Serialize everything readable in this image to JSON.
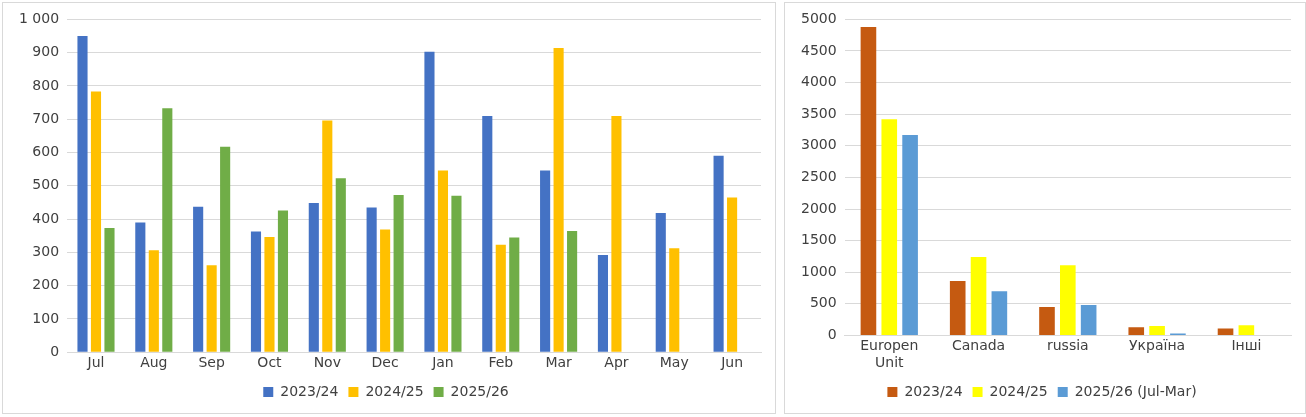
{
  "chart_data": [
    {
      "type": "bar",
      "categories": [
        "Jul",
        "Aug",
        "Sep",
        "Oct",
        "Nov",
        "Dec",
        "Jan",
        "Feb",
        "Mar",
        "Apr",
        "May",
        "Jun"
      ],
      "series": [
        {
          "name": "2023/24",
          "color": "#4472c4",
          "values": [
            950,
            390,
            437,
            363,
            448,
            435,
            903,
            710,
            546,
            292,
            418,
            590
          ]
        },
        {
          "name": "2024/25",
          "color": "#ffc000",
          "values": [
            783,
            306,
            261,
            346,
            696,
            369,
            546,
            323,
            914,
            710,
            312,
            465
          ]
        },
        {
          "name": "2025/26",
          "color": "#70ad47",
          "values": [
            373,
            733,
            617,
            426,
            523,
            472,
            470,
            345,
            364,
            null,
            null,
            null
          ]
        }
      ],
      "ylim": [
        0,
        1000
      ],
      "yticks": [
        0,
        100,
        200,
        300,
        400,
        500,
        600,
        700,
        800,
        900,
        {
          "value": 1000,
          "label": "1 000"
        }
      ],
      "grid": "y",
      "legend": "bottom"
    },
    {
      "type": "bar",
      "categories": [
        "Europen Unit",
        "Canada",
        "russia",
        "Україна",
        "Інші"
      ],
      "series": [
        {
          "name": "2023/24",
          "color": "#c55a11",
          "values": [
            4880,
            860,
            450,
            130,
            110
          ]
        },
        {
          "name": "2024/25",
          "color": "#ffff00",
          "values": [
            3420,
            1240,
            1110,
            150,
            160
          ]
        },
        {
          "name": "2025/26 (Jul-Mar)",
          "color": "#5b9bd5",
          "values": [
            3170,
            700,
            480,
            30,
            null
          ]
        }
      ],
      "ylim": [
        0,
        5000
      ],
      "yticks": [
        0,
        500,
        1000,
        1500,
        2000,
        2500,
        3000,
        3500,
        4000,
        4500,
        5000
      ],
      "grid": "y",
      "legend": "bottom"
    }
  ]
}
